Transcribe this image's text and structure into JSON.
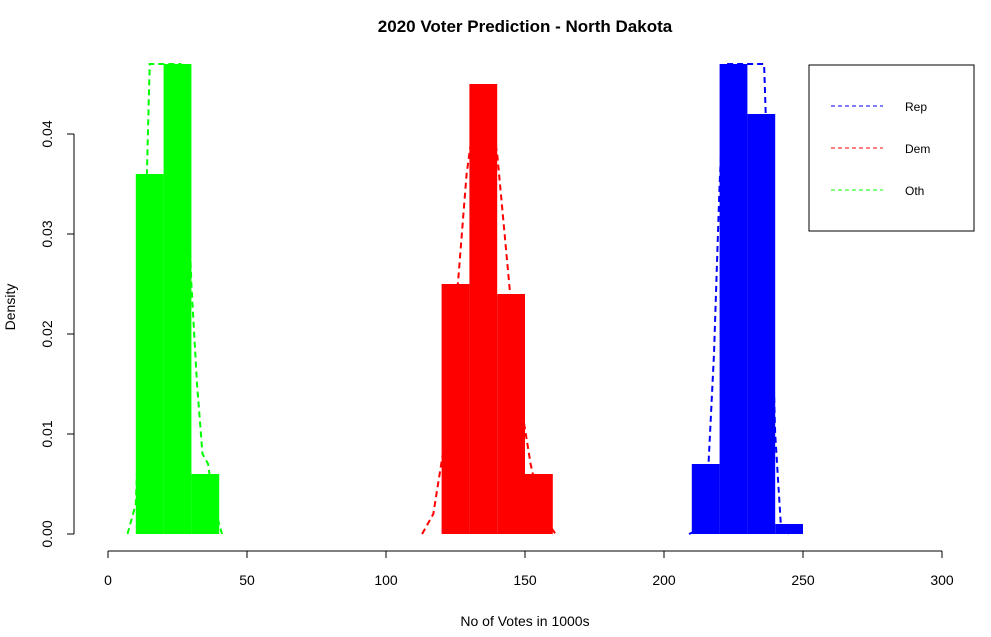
{
  "chart_data": {
    "type": "bar",
    "title": "2020 Voter Prediction - North Dakota",
    "xlabel": "No of Votes in 1000s",
    "ylabel": "Density",
    "xlim": [
      0,
      300
    ],
    "ylim": [
      0,
      0.047
    ],
    "xticks": [
      0,
      50,
      100,
      150,
      200,
      250,
      300
    ],
    "yticks": [
      0.0,
      0.01,
      0.02,
      0.03,
      0.04
    ],
    "ytick_labels": [
      "0.00",
      "0.01",
      "0.02",
      "0.03",
      "0.04"
    ],
    "grid": false,
    "legend_position": "top-right",
    "series": [
      {
        "name": "Rep",
        "color": "#0000ff",
        "bins": [
          {
            "x0": 210,
            "x1": 220,
            "density": 0.007
          },
          {
            "x0": 220,
            "x1": 230,
            "density": 0.047
          },
          {
            "x0": 230,
            "x1": 240,
            "density": 0.042
          },
          {
            "x0": 240,
            "x1": 250,
            "density": 0.001
          }
        ],
        "density_curve": [
          {
            "x": 209,
            "y": 0.0
          },
          {
            "x": 213,
            "y": 0.0005
          },
          {
            "x": 216,
            "y": 0.007
          },
          {
            "x": 218,
            "y": 0.018
          },
          {
            "x": 220,
            "y": 0.035
          },
          {
            "x": 222,
            "y": 0.047
          },
          {
            "x": 234,
            "y": 0.047
          },
          {
            "x": 236,
            "y": 0.047
          },
          {
            "x": 238,
            "y": 0.03
          },
          {
            "x": 240,
            "y": 0.01
          },
          {
            "x": 242,
            "y": 0.001
          },
          {
            "x": 245,
            "y": 0.0
          }
        ]
      },
      {
        "name": "Dem",
        "color": "#ff0000",
        "bins": [
          {
            "x0": 120,
            "x1": 130,
            "density": 0.025
          },
          {
            "x0": 130,
            "x1": 140,
            "density": 0.045
          },
          {
            "x0": 140,
            "x1": 150,
            "density": 0.024
          },
          {
            "x0": 150,
            "x1": 160,
            "density": 0.006
          }
        ],
        "density_curve": [
          {
            "x": 113,
            "y": 0.0
          },
          {
            "x": 117,
            "y": 0.002
          },
          {
            "x": 121,
            "y": 0.009
          },
          {
            "x": 125,
            "y": 0.022
          },
          {
            "x": 129,
            "y": 0.036
          },
          {
            "x": 133,
            "y": 0.044
          },
          {
            "x": 136,
            "y": 0.045
          },
          {
            "x": 140,
            "y": 0.038
          },
          {
            "x": 144,
            "y": 0.026
          },
          {
            "x": 148,
            "y": 0.014
          },
          {
            "x": 152,
            "y": 0.007
          },
          {
            "x": 156,
            "y": 0.002
          },
          {
            "x": 161,
            "y": 0.0
          }
        ]
      },
      {
        "name": "Oth",
        "color": "#00ff00",
        "bins": [
          {
            "x0": 10,
            "x1": 20,
            "density": 0.036
          },
          {
            "x0": 20,
            "x1": 30,
            "density": 0.047
          },
          {
            "x0": 30,
            "x1": 40,
            "density": 0.006
          }
        ],
        "density_curve": [
          {
            "x": 7,
            "y": 0.0
          },
          {
            "x": 10,
            "y": 0.003
          },
          {
            "x": 13,
            "y": 0.025
          },
          {
            "x": 15,
            "y": 0.047
          },
          {
            "x": 26,
            "y": 0.047
          },
          {
            "x": 28,
            "y": 0.04
          },
          {
            "x": 30,
            "y": 0.025
          },
          {
            "x": 32,
            "y": 0.015
          },
          {
            "x": 34,
            "y": 0.008
          },
          {
            "x": 36,
            "y": 0.007
          },
          {
            "x": 38,
            "y": 0.003
          },
          {
            "x": 41,
            "y": 0.0
          }
        ]
      }
    ]
  }
}
